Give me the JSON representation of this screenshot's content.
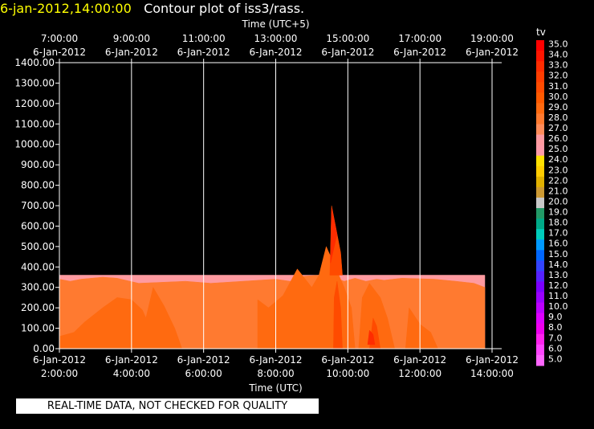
{
  "header": {
    "timestamp": "6-jan-2012,14:00:00",
    "title": "Contour plot of iss3/rass.",
    "timestamp_color": "#ffff00"
  },
  "notice": "REAL-TIME DATA, NOT CHECKED FOR QUALITY",
  "chart_data": {
    "type": "contour",
    "title": "Contour plot of iss3/rass.",
    "top_axis_title": "Time (UTC+5)",
    "top_ticks": [
      {
        "time": "7:00:00",
        "date": "6-Jan-2012"
      },
      {
        "time": "9:00:00",
        "date": "6-Jan-2012"
      },
      {
        "time": "11:00:00",
        "date": "6-Jan-2012"
      },
      {
        "time": "13:00:00",
        "date": "6-Jan-2012"
      },
      {
        "time": "15:00:00",
        "date": "6-Jan-2012"
      },
      {
        "time": "17:00:00",
        "date": "6-Jan-2012"
      },
      {
        "time": "19:00:00",
        "date": "6-Jan-2012"
      }
    ],
    "xlabel": "Time (UTC)",
    "bottom_ticks": [
      {
        "date": "6-Jan-2012",
        "time": "2:00:00"
      },
      {
        "date": "6-Jan-2012",
        "time": "4:00:00"
      },
      {
        "date": "6-Jan-2012",
        "time": "6:00:00"
      },
      {
        "date": "6-Jan-2012",
        "time": "8:00:00"
      },
      {
        "date": "6-Jan-2012",
        "time": "10:00:00"
      },
      {
        "date": "6-Jan-2012",
        "time": "12:00:00"
      },
      {
        "date": "6-Jan-2012",
        "time": "14:00:00"
      }
    ],
    "x_hours_utc": [
      2,
      4,
      6,
      8,
      10,
      12,
      14
    ],
    "xlim_hours_utc": [
      2,
      14
    ],
    "y_ticks": [
      "0.00",
      "100.00",
      "200.00",
      "300.00",
      "400.00",
      "500.00",
      "600.00",
      "700.00",
      "800.00",
      "900.00",
      "1000.00",
      "1100.00",
      "1200.00",
      "1300.00",
      "1400.00"
    ],
    "ylim": [
      0,
      1400
    ],
    "grid": "vertical",
    "colorbar": {
      "label": "tv",
      "levels": [
        "35.0",
        "34.0",
        "33.0",
        "32.0",
        "31.0",
        "30.0",
        "29.0",
        "28.0",
        "27.0",
        "26.0",
        "25.0",
        "24.0",
        "23.0",
        "22.0",
        "21.0",
        "20.0",
        "19.0",
        "18.0",
        "17.0",
        "16.0",
        "15.0",
        "14.0",
        "13.0",
        "12.0",
        "11.0",
        "10.0",
        "9.0",
        "8.0",
        "7.0",
        "6.0",
        "5.0"
      ],
      "colors": [
        "#ff0000",
        "#ff1500",
        "#ff2c00",
        "#ff3d00",
        "#ff4b00",
        "#ff5a00",
        "#ff6a10",
        "#ff7a30",
        "#ff8c5a",
        "#ff9aa0",
        "#ff9aa8",
        "#ffe000",
        "#ffcc00",
        "#e0b000",
        "#cc9933",
        "#c8c8c8",
        "#229966",
        "#00aa88",
        "#00ccbb",
        "#0099ff",
        "#0066ff",
        "#3344ff",
        "#5522ff",
        "#7a00ff",
        "#9900ff",
        "#bb00ff",
        "#dd00ff",
        "#ee00ee",
        "#ff22ee",
        "#ff44ff",
        "#ff66ff"
      ]
    },
    "fields": [
      {
        "level": "26.0",
        "color": "#ff9aa0",
        "points": [
          [
            2.0,
            0
          ],
          [
            2.0,
            360
          ],
          [
            13.8,
            360
          ],
          [
            13.8,
            0
          ]
        ]
      },
      {
        "level": "28.0",
        "color": "#ff7a30",
        "points": [
          [
            2.0,
            0
          ],
          [
            2.0,
            340
          ],
          [
            2.3,
            330
          ],
          [
            2.6,
            340
          ],
          [
            3.2,
            350
          ],
          [
            3.6,
            345
          ],
          [
            4.2,
            320
          ],
          [
            5.5,
            330
          ],
          [
            6.2,
            320
          ],
          [
            8.0,
            340
          ],
          [
            8.4,
            330
          ],
          [
            8.8,
            355
          ],
          [
            9.2,
            360
          ],
          [
            9.4,
            360
          ],
          [
            9.6,
            350
          ],
          [
            9.9,
            330
          ],
          [
            10.2,
            345
          ],
          [
            10.5,
            330
          ],
          [
            10.8,
            340
          ],
          [
            11.0,
            335
          ],
          [
            11.5,
            345
          ],
          [
            12.4,
            340
          ],
          [
            13.0,
            330
          ],
          [
            13.5,
            320
          ],
          [
            13.8,
            300
          ],
          [
            13.8,
            0
          ]
        ]
      },
      {
        "level": "29.0",
        "color": "#ff6a10",
        "points": [
          [
            2.0,
            0
          ],
          [
            2.0,
            60
          ],
          [
            2.4,
            80
          ],
          [
            2.7,
            130
          ],
          [
            3.2,
            200
          ],
          [
            3.6,
            250
          ],
          [
            4.0,
            240
          ],
          [
            4.3,
            190
          ],
          [
            4.4,
            150
          ],
          [
            4.6,
            300
          ],
          [
            4.9,
            210
          ],
          [
            5.2,
            100
          ],
          [
            5.4,
            0
          ]
        ]
      },
      {
        "level": "29.0",
        "color": "#ff6a10",
        "points": [
          [
            7.5,
            0
          ],
          [
            7.5,
            240
          ],
          [
            7.8,
            200
          ],
          [
            8.2,
            260
          ],
          [
            8.6,
            390
          ],
          [
            9.0,
            300
          ],
          [
            9.2,
            360
          ],
          [
            9.4,
            500
          ],
          [
            9.6,
            420
          ],
          [
            9.9,
            300
          ],
          [
            10.1,
            200
          ],
          [
            10.2,
            0
          ]
        ]
      },
      {
        "level": "29.0",
        "color": "#ff6a10",
        "points": [
          [
            10.3,
            0
          ],
          [
            10.4,
            250
          ],
          [
            10.6,
            320
          ],
          [
            10.9,
            250
          ],
          [
            11.1,
            150
          ],
          [
            11.3,
            0
          ]
        ]
      },
      {
        "level": "29.0",
        "color": "#ff6a10",
        "points": [
          [
            11.6,
            0
          ],
          [
            11.7,
            200
          ],
          [
            12.0,
            120
          ],
          [
            12.3,
            80
          ],
          [
            12.5,
            0
          ]
        ]
      },
      {
        "level": "31.0",
        "color": "#ff4b00",
        "points": [
          [
            9.5,
            360
          ],
          [
            9.55,
            700
          ],
          [
            9.8,
            470
          ],
          [
            9.85,
            360
          ]
        ]
      },
      {
        "level": "31.0",
        "color": "#ff4b00",
        "points": [
          [
            9.6,
            0
          ],
          [
            9.62,
            250
          ],
          [
            9.7,
            330
          ],
          [
            9.8,
            200
          ],
          [
            9.85,
            0
          ]
        ]
      },
      {
        "level": "31.0",
        "color": "#ff4b00",
        "points": [
          [
            10.6,
            0
          ],
          [
            10.7,
            150
          ],
          [
            10.8,
            110
          ],
          [
            10.9,
            0
          ]
        ]
      },
      {
        "level": "33.0",
        "color": "#ff2c00",
        "points": [
          [
            9.52,
            420
          ],
          [
            9.55,
            690
          ],
          [
            9.7,
            560
          ]
        ]
      },
      {
        "level": "33.0",
        "color": "#ff2c00",
        "points": [
          [
            10.55,
            20
          ],
          [
            10.6,
            90
          ],
          [
            10.7,
            70
          ],
          [
            10.75,
            20
          ]
        ]
      }
    ]
  }
}
